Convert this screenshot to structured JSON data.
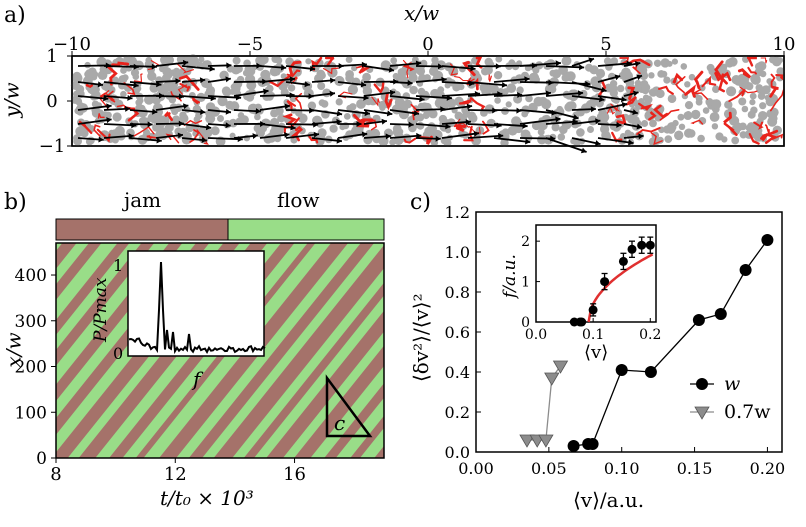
{
  "panel_a": {
    "label": "a)",
    "xlabel": "x/w",
    "ylabel": "y/w",
    "xticks": [
      "−10",
      "−5",
      "0",
      "5",
      "10"
    ],
    "yticks": [
      "1",
      "0",
      "−1"
    ],
    "xlim": [
      -10,
      10
    ],
    "ylim": [
      -1,
      1
    ],
    "colors": {
      "particle": "#a9a9a9",
      "force_chain": "#e8231c",
      "arrow": "#000000"
    }
  },
  "panel_b": {
    "label": "b)",
    "state_bar": {
      "jam_label": "jam",
      "flow_label": "flow",
      "jam_color": "#a5726a",
      "flow_color": "#99dd88",
      "split_fraction": 0.55
    },
    "xlabel": "t/t₀ × 10³",
    "ylabel": "x/w",
    "xticks": [
      "8",
      "12",
      "16"
    ],
    "yticks": [
      "0",
      "100",
      "200",
      "300",
      "400"
    ],
    "xlim": [
      8,
      19
    ],
    "ylim": [
      0,
      470
    ],
    "triangle_label": "c",
    "inset": {
      "ylabel": "P/Pmax",
      "xlabel": "f",
      "yticks": [
        "0",
        "1"
      ]
    }
  },
  "panel_c": {
    "label": "c)",
    "xlabel": "⟨v⟩/a.u.",
    "ylabel": "⟨δv²⟩/⟨v⟩²",
    "inset_xlabel": "⟨v⟩",
    "inset_ylabel": "f/a.u.",
    "legend": [
      {
        "label": "w",
        "marker": "circle"
      },
      {
        "label": "0.7w",
        "marker": "triangle-down"
      }
    ],
    "colors": {
      "series_w": "#000000",
      "series_07w": "#8c8c8c",
      "fit": "#e03030"
    }
  },
  "chart_data": {
    "type": "line",
    "title": "",
    "xlabel": "⟨v⟩/a.u.",
    "ylabel": "⟨δv²⟩/⟨v⟩²",
    "xlim": [
      0,
      0.21
    ],
    "ylim": [
      0,
      1.2
    ],
    "xticks": [
      "0.00",
      "0.05",
      "0.10",
      "0.15",
      "0.20"
    ],
    "yticks": [
      "0.0",
      "0.2",
      "0.4",
      "0.6",
      "0.8",
      "1.0",
      "1.2"
    ],
    "series": [
      {
        "name": "w",
        "x": [
          0.067,
          0.077,
          0.08,
          0.1,
          0.12,
          0.153,
          0.168,
          0.185,
          0.2
        ],
        "y": [
          0.03,
          0.04,
          0.04,
          0.41,
          0.4,
          0.66,
          0.69,
          0.91,
          1.06
        ]
      },
      {
        "name": "0.7w",
        "x": [
          0.035,
          0.042,
          0.048,
          0.052,
          0.058
        ],
        "y": [
          0.06,
          0.06,
          0.06,
          0.37,
          0.43
        ]
      }
    ],
    "inset": {
      "type": "scatter",
      "xlabel": "⟨v⟩",
      "ylabel": "f/a.u.",
      "xlim": [
        0,
        0.21
      ],
      "ylim": [
        0,
        2.4
      ],
      "xticks": [
        "0.0",
        "0.1",
        "0.2"
      ],
      "yticks": [
        "0",
        "1",
        "2"
      ],
      "x": [
        0.067,
        0.077,
        0.08,
        0.1,
        0.12,
        0.153,
        0.168,
        0.185,
        0.2
      ],
      "y": [
        0.0,
        0.0,
        0.0,
        0.3,
        1.0,
        1.5,
        1.8,
        1.9,
        1.9
      ],
      "yerr": [
        0.0,
        0.0,
        0.0,
        0.15,
        0.2,
        0.2,
        0.2,
        0.2,
        0.2
      ],
      "fit": {
        "label": "sqrt fit",
        "v0": 0.092,
        "amp": 5.0
      }
    }
  }
}
